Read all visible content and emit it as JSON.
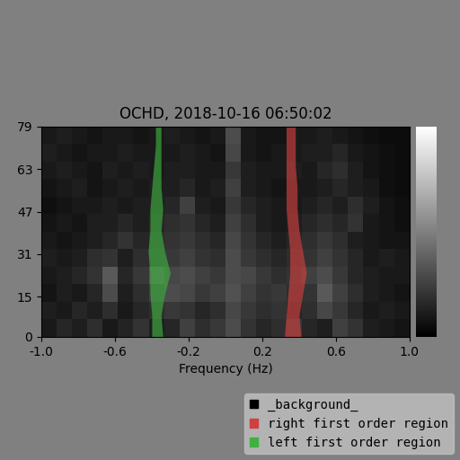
{
  "chart_data": {
    "type": "heatmap",
    "title": "OCHD, 2018-10-16 06:50:02",
    "x_label": "Frequency (Hz)",
    "xlim": [
      -1.0,
      1.0
    ],
    "xticks": [
      -1.0,
      -0.6,
      -0.2,
      0.2,
      0.6,
      1.0
    ],
    "ylim": [
      0,
      79
    ],
    "yticks": [
      0,
      15,
      31,
      47,
      63,
      79
    ],
    "colorbar_range": [
      0,
      1
    ],
    "cells": [
      [
        0.1,
        0.15,
        0.12,
        0.18,
        0.1,
        0.14,
        0.2,
        0.12,
        0.15,
        0.25,
        0.18,
        0.22,
        0.3,
        0.2,
        0.15,
        0.18,
        0.22,
        0.15,
        0.12,
        0.25,
        0.2,
        0.12,
        0.1,
        0.08
      ],
      [
        0.12,
        0.1,
        0.15,
        0.12,
        0.18,
        0.1,
        0.15,
        0.18,
        0.22,
        0.2,
        0.15,
        0.18,
        0.28,
        0.22,
        0.18,
        0.2,
        0.15,
        0.18,
        0.28,
        0.22,
        0.15,
        0.1,
        0.12,
        0.1
      ],
      [
        0.08,
        0.12,
        0.1,
        0.15,
        0.3,
        0.12,
        0.18,
        0.25,
        0.3,
        0.28,
        0.22,
        0.25,
        0.32,
        0.25,
        0.2,
        0.22,
        0.18,
        0.2,
        0.35,
        0.25,
        0.18,
        0.12,
        0.1,
        0.08
      ],
      [
        0.1,
        0.12,
        0.15,
        0.2,
        0.35,
        0.15,
        0.22,
        0.35,
        0.28,
        0.3,
        0.25,
        0.22,
        0.3,
        0.28,
        0.22,
        0.18,
        0.2,
        0.25,
        0.3,
        0.22,
        0.15,
        0.12,
        0.1,
        0.1
      ],
      [
        0.12,
        0.1,
        0.12,
        0.18,
        0.2,
        0.12,
        0.18,
        0.2,
        0.22,
        0.25,
        0.2,
        0.18,
        0.3,
        0.22,
        0.18,
        0.15,
        0.18,
        0.2,
        0.25,
        0.2,
        0.15,
        0.1,
        0.12,
        0.1
      ],
      [
        0.1,
        0.08,
        0.1,
        0.12,
        0.15,
        0.2,
        0.15,
        0.18,
        0.2,
        0.22,
        0.18,
        0.15,
        0.28,
        0.2,
        0.15,
        0.12,
        0.15,
        0.18,
        0.22,
        0.18,
        0.12,
        0.1,
        0.08,
        0.08
      ],
      [
        0.08,
        0.1,
        0.08,
        0.12,
        0.12,
        0.15,
        0.12,
        0.15,
        0.18,
        0.2,
        0.15,
        0.12,
        0.25,
        0.18,
        0.12,
        0.1,
        0.12,
        0.15,
        0.18,
        0.15,
        0.2,
        0.1,
        0.08,
        0.06
      ],
      [
        0.06,
        0.08,
        0.1,
        0.1,
        0.12,
        0.1,
        0.12,
        0.12,
        0.15,
        0.25,
        0.12,
        0.1,
        0.22,
        0.15,
        0.12,
        0.1,
        0.1,
        0.12,
        0.15,
        0.12,
        0.18,
        0.12,
        0.08,
        0.06
      ],
      [
        0.08,
        0.1,
        0.12,
        0.08,
        0.1,
        0.12,
        0.1,
        0.12,
        0.12,
        0.15,
        0.1,
        0.12,
        0.25,
        0.12,
        0.1,
        0.08,
        0.1,
        0.1,
        0.12,
        0.15,
        0.12,
        0.1,
        0.06,
        0.05
      ],
      [
        0.1,
        0.12,
        0.1,
        0.08,
        0.12,
        0.1,
        0.12,
        0.1,
        0.12,
        0.12,
        0.1,
        0.1,
        0.22,
        0.12,
        0.1,
        0.1,
        0.12,
        0.1,
        0.15,
        0.18,
        0.12,
        0.08,
        0.06,
        0.05
      ],
      [
        0.12,
        0.1,
        0.08,
        0.1,
        0.1,
        0.12,
        0.1,
        0.1,
        0.1,
        0.12,
        0.1,
        0.08,
        0.28,
        0.1,
        0.08,
        0.1,
        0.1,
        0.12,
        0.12,
        0.15,
        0.1,
        0.08,
        0.06,
        0.05
      ],
      [
        0.1,
        0.12,
        0.1,
        0.08,
        0.1,
        0.1,
        0.08,
        0.1,
        0.12,
        0.1,
        0.08,
        0.1,
        0.3,
        0.1,
        0.08,
        0.08,
        0.1,
        0.1,
        0.12,
        0.1,
        0.08,
        0.06,
        0.05,
        0.05
      ]
    ],
    "regions_y": [
      0,
      8,
      16,
      24,
      32,
      40,
      48,
      56,
      64,
      72,
      79
    ],
    "series": [
      {
        "name": "_background_",
        "color": "#000000"
      },
      {
        "name": "right first order region",
        "color": "#d04040",
        "x_left": [
          0.32,
          0.33,
          0.34,
          0.35,
          0.35,
          0.34,
          0.33,
          0.33,
          0.33,
          0.33,
          0.33
        ],
        "x_right": [
          0.41,
          0.4,
          0.42,
          0.44,
          0.42,
          0.4,
          0.39,
          0.39,
          0.38,
          0.38,
          0.38
        ]
      },
      {
        "name": "left first order region",
        "color": "#40b040",
        "x_left": [
          -0.4,
          -0.4,
          -0.41,
          -0.41,
          -0.42,
          -0.41,
          -0.41,
          -0.4,
          -0.39,
          -0.38,
          -0.38
        ],
        "x_right": [
          -0.34,
          -0.35,
          -0.33,
          -0.3,
          -0.33,
          -0.35,
          -0.34,
          -0.35,
          -0.35,
          -0.35,
          -0.35
        ]
      }
    ],
    "legend": "lower right"
  }
}
